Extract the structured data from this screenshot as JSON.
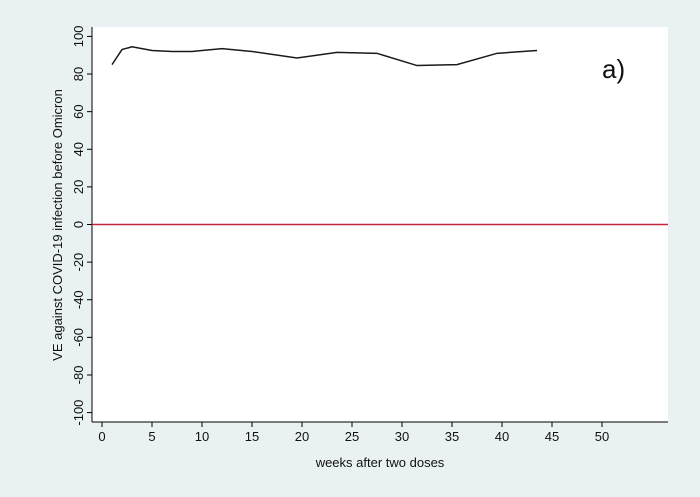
{
  "chart_data": {
    "type": "line",
    "annotation": "a)",
    "x_label": "weeks after two doses",
    "y_label": "VE against COVID-19 infection before Omicron",
    "x": [
      1,
      2,
      3,
      5,
      7,
      9,
      10,
      12,
      15,
      19.5,
      23.5,
      27.5,
      31.5,
      35.5,
      39.5,
      43.5
    ],
    "series": [
      {
        "color": "#1a1a1a",
        "values": [
          85,
          93,
          94.5,
          92.5,
          92,
          92,
          92.5,
          93.5,
          92,
          88.5,
          91.5,
          91,
          84.5,
          85,
          91,
          92.5
        ]
      }
    ],
    "xlim": [
      -1,
      56.6
    ],
    "xticks": [
      0,
      5,
      10,
      15,
      20,
      25,
      30,
      35,
      40,
      45,
      50
    ],
    "ylim": [
      -105,
      105
    ],
    "yticks": [
      -100,
      -80,
      -60,
      -40,
      -20,
      0,
      20,
      40,
      60,
      80,
      100
    ],
    "reference_line": 0,
    "reference_color": "#c0283c"
  }
}
